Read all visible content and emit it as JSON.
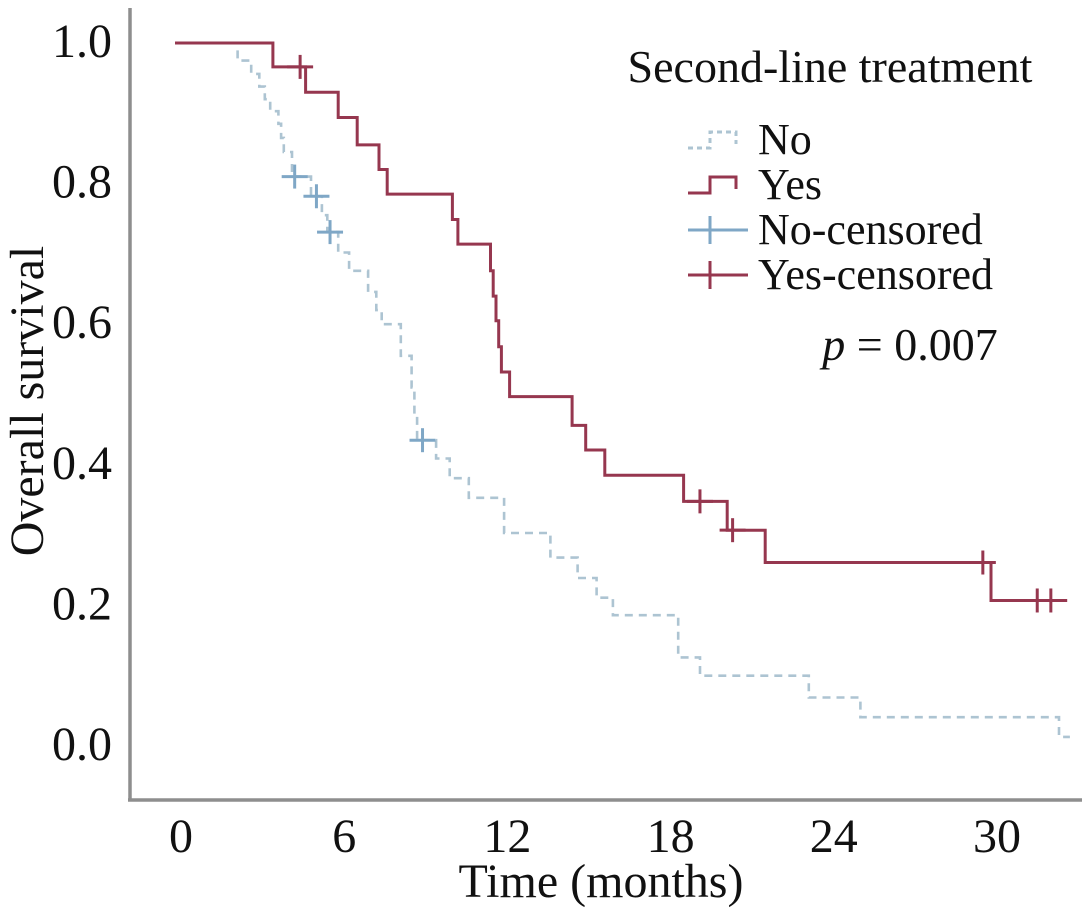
{
  "chart_data": {
    "type": "line",
    "subtype": "kaplan-meier-step",
    "title": "",
    "xlabel": "Time (months)",
    "ylabel": "Overall survival",
    "xlim": [
      0,
      33
    ],
    "ylim": [
      0.0,
      1.0
    ],
    "grid": false,
    "x_ticks": [
      "0",
      "6",
      "12",
      "18",
      "24",
      "30"
    ],
    "x_tick_values": [
      0,
      6,
      12,
      18,
      24,
      30
    ],
    "y_ticks": [
      "0.0",
      "0.2",
      "0.4",
      "0.6",
      "0.8",
      "1.0"
    ],
    "y_tick_values": [
      0.0,
      0.2,
      0.4,
      0.6,
      0.8,
      1.0
    ],
    "legend_position": "upper-right-inside",
    "legend": {
      "title": "Second-line treatment",
      "items": [
        {
          "label": "No",
          "symbol": "step-dashed",
          "color_key": "no"
        },
        {
          "label": "Yes",
          "symbol": "step-solid",
          "color_key": "yes"
        },
        {
          "label": "No-censored",
          "symbol": "censor",
          "color_key": "no_censor"
        },
        {
          "label": "Yes-censored",
          "symbol": "censor",
          "color_key": "yes"
        }
      ]
    },
    "p_label": {
      "var": "p",
      "text": " = 0.007"
    },
    "colors": {
      "no": "#adc4d2",
      "no_censor": "#7fa7c6",
      "yes": "#96374f",
      "axis": "#8e8e8e",
      "text": "#111111"
    },
    "series": [
      {
        "name": "No",
        "style": "dashed",
        "color_key": "no",
        "censor_color_key": "no_censor",
        "points": [
          [
            0,
            1.0
          ],
          [
            2.3,
            0.975
          ],
          [
            2.8,
            0.956
          ],
          [
            3.1,
            0.938
          ],
          [
            3.3,
            0.92
          ],
          [
            3.5,
            0.903
          ],
          [
            3.8,
            0.885
          ],
          [
            3.9,
            0.865
          ],
          [
            4.0,
            0.845
          ],
          [
            4.3,
            0.81
          ],
          [
            5.0,
            0.782
          ],
          [
            5.4,
            0.755
          ],
          [
            5.6,
            0.731
          ],
          [
            6.0,
            0.702
          ],
          [
            6.4,
            0.676
          ],
          [
            7.1,
            0.646
          ],
          [
            7.4,
            0.62
          ],
          [
            7.6,
            0.6
          ],
          [
            8.3,
            0.555
          ],
          [
            8.7,
            0.51
          ],
          [
            8.8,
            0.47
          ],
          [
            8.9,
            0.435
          ],
          [
            9.6,
            0.409
          ],
          [
            10.1,
            0.381
          ],
          [
            10.8,
            0.353
          ],
          [
            12.1,
            0.303
          ],
          [
            13.8,
            0.268
          ],
          [
            14.8,
            0.239
          ],
          [
            15.5,
            0.211
          ],
          [
            16.1,
            0.186
          ],
          [
            18.5,
            0.126
          ],
          [
            19.3,
            0.1
          ],
          [
            23.3,
            0.069
          ],
          [
            25.2,
            0.041
          ],
          [
            32.5,
            0.013
          ]
        ],
        "end_time": 32.9,
        "censored": [
          [
            4.4,
            0.81
          ],
          [
            5.2,
            0.782
          ],
          [
            5.7,
            0.731
          ],
          [
            9.1,
            0.435
          ]
        ]
      },
      {
        "name": "Yes",
        "style": "solid",
        "color_key": "yes",
        "censor_color_key": "yes",
        "points": [
          [
            0,
            1.0
          ],
          [
            3.6,
            0.966
          ],
          [
            4.8,
            0.93
          ],
          [
            6.0,
            0.894
          ],
          [
            6.7,
            0.855
          ],
          [
            7.5,
            0.82
          ],
          [
            7.8,
            0.785
          ],
          [
            10.2,
            0.749
          ],
          [
            10.4,
            0.714
          ],
          [
            11.6,
            0.676
          ],
          [
            11.7,
            0.64
          ],
          [
            11.8,
            0.605
          ],
          [
            11.9,
            0.568
          ],
          [
            12.0,
            0.532
          ],
          [
            12.3,
            0.497
          ],
          [
            14.6,
            0.456
          ],
          [
            15.1,
            0.421
          ],
          [
            15.8,
            0.385
          ],
          [
            18.7,
            0.348
          ],
          [
            20.3,
            0.307
          ],
          [
            21.7,
            0.261
          ],
          [
            30.0,
            0.207
          ]
        ],
        "end_time": 32.8,
        "censored": [
          [
            4.6,
            0.966
          ],
          [
            19.3,
            0.348
          ],
          [
            20.5,
            0.307
          ],
          [
            29.7,
            0.261
          ],
          [
            31.7,
            0.207
          ],
          [
            32.2,
            0.207
          ]
        ]
      }
    ]
  }
}
